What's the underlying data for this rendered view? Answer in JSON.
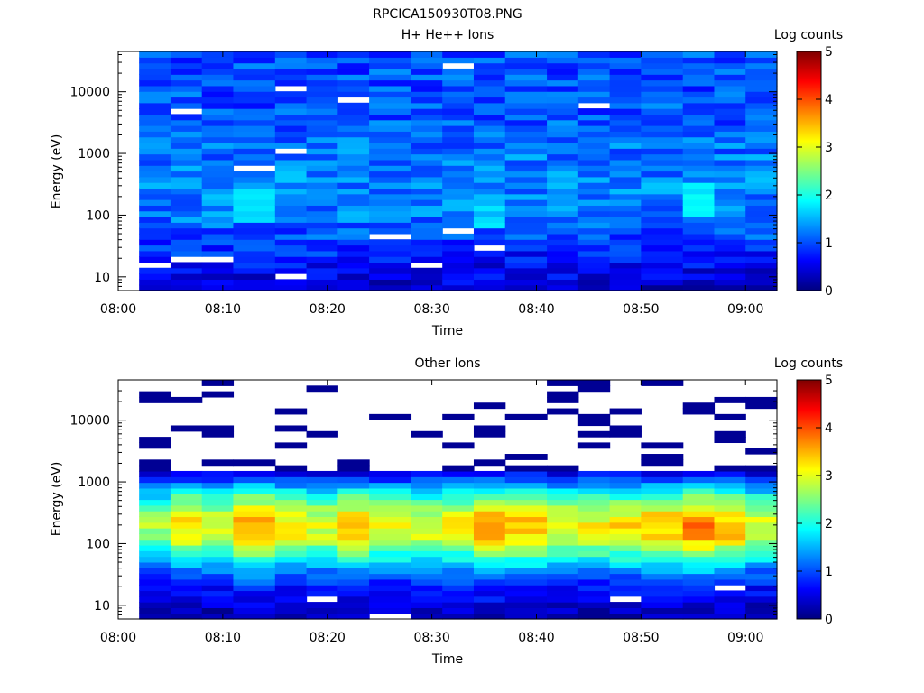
{
  "figure_title": "RPCICA150930T08.PNG",
  "chart_data": [
    {
      "type": "heatmap",
      "title": "H+ He++ Ions",
      "xlabel": "Time",
      "ylabel": "Energy (eV)",
      "x_ticks": [
        "08:00",
        "08:10",
        "08:20",
        "08:30",
        "08:40",
        "08:50",
        "09:00"
      ],
      "xlim": [
        "08:00",
        "09:03"
      ],
      "y_scale": "log",
      "y_ticks": [
        10,
        100,
        1000,
        10000
      ],
      "ylim": [
        6,
        45000
      ],
      "colorbar": {
        "label": "Log counts",
        "ticks": [
          0,
          1,
          2,
          3,
          4,
          5
        ],
        "range": [
          0,
          5
        ]
      },
      "columns": [
        "08:02",
        "08:05",
        "08:08",
        "08:11",
        "08:15",
        "08:18",
        "08:21",
        "08:24",
        "08:28",
        "08:31",
        "08:34",
        "08:37",
        "08:41",
        "08:44",
        "08:47",
        "08:50",
        "08:54",
        "08:57",
        "09:00"
      ],
      "profile": {
        "log_energy_ev": [
          0.8,
          1.0,
          1.2,
          1.5,
          2.0,
          2.5,
          3.0,
          3.5,
          4.0,
          4.6
        ],
        "log_counts": [
          0.3,
          0.5,
          0.6,
          0.9,
          1.2,
          1.3,
          1.2,
          1.05,
          1.0,
          1.0
        ]
      },
      "highlights": [
        {
          "time": "08:13",
          "energy_ev": 150,
          "log_counts": 1.9
        },
        {
          "time": "08:55",
          "energy_ev": 180,
          "log_counts": 2.0
        },
        {
          "time": "08:35",
          "energy_ev": 120,
          "log_counts": 1.8
        }
      ]
    },
    {
      "type": "heatmap",
      "title": "Other Ions",
      "xlabel": "Time",
      "ylabel": "Energy (eV)",
      "x_ticks": [
        "08:00",
        "08:10",
        "08:20",
        "08:30",
        "08:40",
        "08:50",
        "09:00"
      ],
      "xlim": [
        "08:00",
        "09:03"
      ],
      "y_scale": "log",
      "y_ticks": [
        10,
        100,
        1000,
        10000
      ],
      "ylim": [
        6,
        45000
      ],
      "colorbar": {
        "label": "Log counts",
        "ticks": [
          0,
          1,
          2,
          3,
          4,
          5
        ],
        "range": [
          0,
          5
        ]
      },
      "columns": [
        "08:02",
        "08:05",
        "08:08",
        "08:11",
        "08:15",
        "08:18",
        "08:21",
        "08:24",
        "08:28",
        "08:31",
        "08:34",
        "08:37",
        "08:41",
        "08:44",
        "08:47",
        "08:50",
        "08:54",
        "08:57",
        "09:00"
      ],
      "profile": {
        "log_energy_ev": [
          0.8,
          1.0,
          1.3,
          1.6,
          1.9,
          2.1,
          2.3,
          2.5,
          2.75,
          3.0,
          3.2
        ],
        "log_counts": [
          0.2,
          0.4,
          0.7,
          1.3,
          2.3,
          2.9,
          3.1,
          2.8,
          2.1,
          1.1,
          0.3
        ]
      },
      "column_peak_log_counts": [
        2.7,
        3.3,
        3.0,
        3.6,
        3.2,
        3.0,
        3.4,
        3.1,
        3.0,
        3.2,
        3.7,
        3.5,
        3.1,
        3.1,
        3.3,
        3.5,
        3.8,
        3.5,
        3.0
      ],
      "sparse_bins_above_ev": 1500,
      "sparse_log_counts": 0.1
    }
  ]
}
